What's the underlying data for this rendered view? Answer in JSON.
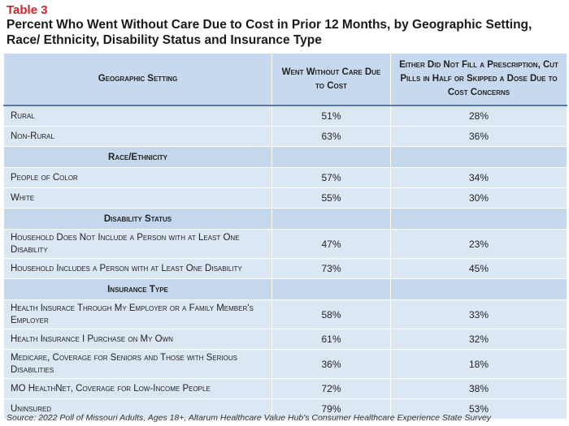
{
  "label": "Table 3",
  "title": "Percent Who Went Without Care Due to Cost in Prior 12 Months, by Geographic Setting, Race/ Ethnicity, Disability Status and Insurance Type",
  "columns": [
    "Geographic Setting",
    "Went Without Care Due to Cost",
    "Either Did Not Fill a Prescription, Cut Pills in Half or Skipped a Dose Due to Cost Concerns"
  ],
  "rows": [
    {
      "type": "data",
      "label": "Rural",
      "v1": "51%",
      "v2": "28%"
    },
    {
      "type": "data",
      "label": "Non-Rural",
      "v1": "63%",
      "v2": "36%"
    },
    {
      "type": "section",
      "label": "Race/Ethnicity"
    },
    {
      "type": "data",
      "label": "People of Color",
      "v1": "57%",
      "v2": "34%"
    },
    {
      "type": "data",
      "label": "White",
      "v1": "55%",
      "v2": "30%"
    },
    {
      "type": "section",
      "label": "Disability Status"
    },
    {
      "type": "data",
      "label": "Household Does Not Include a Person with at Least One Disability",
      "v1": "47%",
      "v2": "23%",
      "tall": true
    },
    {
      "type": "data",
      "label": "Household Includes a Person with at Least One Disability",
      "v1": "73%",
      "v2": "45%"
    },
    {
      "type": "section",
      "label": "Insurance Type"
    },
    {
      "type": "data",
      "label": "Health Insurace Through My Employer or a Family Member's Employer",
      "v1": "58%",
      "v2": "33%",
      "tall": true
    },
    {
      "type": "data",
      "label": "Health Insurance I Purchase on My Own",
      "v1": "61%",
      "v2": "32%"
    },
    {
      "type": "data",
      "label": "Medicare, Coverage for Seniors and Those with Serious Disabilities",
      "v1": "36%",
      "v2": "18%",
      "tall": true
    },
    {
      "type": "data",
      "label": "MO HealthNet, Coverage for Low-Income People",
      "v1": "72%",
      "v2": "38%"
    },
    {
      "type": "data",
      "label": "Uninsured",
      "v1": "79%",
      "v2": "53%"
    }
  ],
  "source": "Source: 2022 Poll of Missouri Adults, Ages 18+, Altarum Healthcare Value Hub's Consumer Healthcare Experience State Survey"
}
